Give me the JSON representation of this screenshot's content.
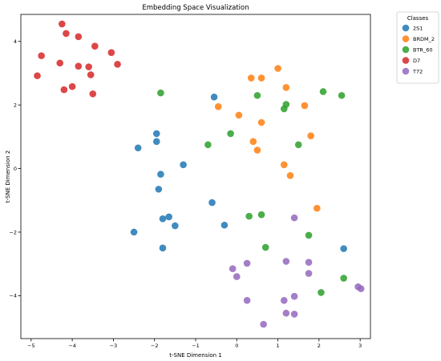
{
  "chart_data": {
    "type": "scatter",
    "title": "Embedding Space Visualization",
    "xlabel": "t-SNE Dimension 1",
    "ylabel": "t-SNE Dimension 2",
    "xlim": [
      -5.25,
      3.25
    ],
    "ylim": [
      -5.35,
      4.85
    ],
    "xticks": [
      -5,
      -4,
      -3,
      -2,
      -1,
      0,
      1,
      2,
      3
    ],
    "yticks": [
      -4,
      -2,
      0,
      2,
      4
    ],
    "grid": false,
    "legend": {
      "title": "Classes",
      "placement": "outside-top-right"
    },
    "series": [
      {
        "name": "2S1",
        "color": "#1f77b4",
        "points": [
          [
            -0.55,
            2.25
          ],
          [
            -1.95,
            1.1
          ],
          [
            -1.95,
            0.85
          ],
          [
            -2.4,
            0.65
          ],
          [
            -1.3,
            0.12
          ],
          [
            -1.85,
            -0.18
          ],
          [
            -1.9,
            -0.65
          ],
          [
            -0.6,
            -1.07
          ],
          [
            -1.65,
            -1.52
          ],
          [
            -1.8,
            -1.58
          ],
          [
            -1.5,
            -1.8
          ],
          [
            -0.3,
            -1.78
          ],
          [
            -2.5,
            -2.0
          ],
          [
            -1.8,
            -2.5
          ],
          [
            2.6,
            -2.52
          ]
        ]
      },
      {
        "name": "BRDM_2",
        "color": "#ff7f0e",
        "points": [
          [
            0.35,
            2.85
          ],
          [
            0.6,
            2.85
          ],
          [
            1.0,
            3.15
          ],
          [
            1.2,
            2.55
          ],
          [
            -0.45,
            1.95
          ],
          [
            1.65,
            1.98
          ],
          [
            0.05,
            1.68
          ],
          [
            0.6,
            1.45
          ],
          [
            1.8,
            1.03
          ],
          [
            0.4,
            0.85
          ],
          [
            0.5,
            0.58
          ],
          [
            1.15,
            0.12
          ],
          [
            1.3,
            -0.22
          ],
          [
            1.95,
            -1.25
          ]
        ]
      },
      {
        "name": "BTR_60",
        "color": "#2ca02c",
        "points": [
          [
            -1.85,
            2.38
          ],
          [
            0.5,
            2.3
          ],
          [
            2.1,
            2.42
          ],
          [
            2.55,
            2.3
          ],
          [
            1.2,
            2.02
          ],
          [
            1.15,
            1.88
          ],
          [
            -0.15,
            1.1
          ],
          [
            -0.7,
            0.75
          ],
          [
            1.5,
            0.75
          ],
          [
            0.3,
            -1.5
          ],
          [
            0.6,
            -1.45
          ],
          [
            1.75,
            -2.1
          ],
          [
            0.7,
            -2.48
          ],
          [
            2.6,
            -3.45
          ],
          [
            2.05,
            -3.9
          ]
        ]
      },
      {
        "name": "D7",
        "color": "#d62728",
        "points": [
          [
            -4.25,
            4.55
          ],
          [
            -4.15,
            4.25
          ],
          [
            -3.85,
            4.15
          ],
          [
            -3.45,
            3.85
          ],
          [
            -3.05,
            3.65
          ],
          [
            -4.75,
            3.55
          ],
          [
            -4.3,
            3.32
          ],
          [
            -3.85,
            3.22
          ],
          [
            -3.6,
            3.2
          ],
          [
            -2.9,
            3.28
          ],
          [
            -3.55,
            2.95
          ],
          [
            -4.85,
            2.92
          ],
          [
            -4.0,
            2.58
          ],
          [
            -4.2,
            2.48
          ],
          [
            -3.5,
            2.35
          ]
        ]
      },
      {
        "name": "T72",
        "color": "#9467bd",
        "points": [
          [
            1.4,
            -1.55
          ],
          [
            1.2,
            -2.92
          ],
          [
            1.75,
            -2.95
          ],
          [
            0.25,
            -2.98
          ],
          [
            -0.1,
            -3.15
          ],
          [
            1.75,
            -3.3
          ],
          [
            0.0,
            -3.4
          ],
          [
            2.95,
            -3.72
          ],
          [
            3.02,
            -3.78
          ],
          [
            1.4,
            -4.02
          ],
          [
            1.15,
            -4.15
          ],
          [
            0.25,
            -4.15
          ],
          [
            1.2,
            -4.55
          ],
          [
            1.4,
            -4.58
          ],
          [
            0.65,
            -4.9
          ]
        ]
      }
    ]
  }
}
